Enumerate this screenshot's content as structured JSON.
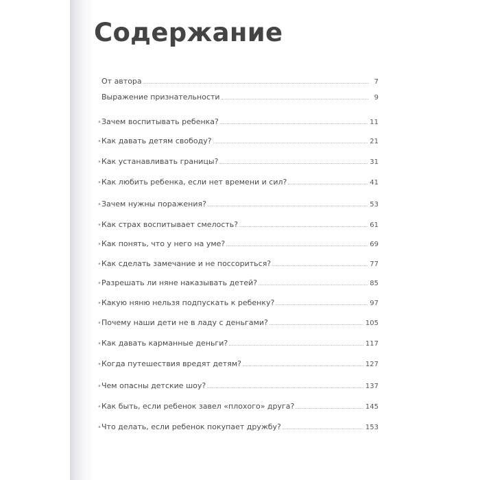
{
  "title": "Содержание",
  "entries": [
    {
      "label": "От автора",
      "page": "7",
      "bullet": false
    },
    {
      "label": "Выражение признательности",
      "page": "9",
      "bullet": false
    },
    {
      "label": "Зачем воспитывать ребенка?",
      "page": "11",
      "bullet": true
    },
    {
      "label": "Как давать детям свободу?",
      "page": "21",
      "bullet": true
    },
    {
      "label": "Как устанавливать границы?",
      "page": "31",
      "bullet": true
    },
    {
      "label": "Как любить ребенка, если нет времени и сил?",
      "page": "41",
      "bullet": true
    },
    {
      "label": "Зачем нужны поражения?",
      "page": "53",
      "bullet": true
    },
    {
      "label": "Как страх воспитывает смелость?",
      "page": "61",
      "bullet": true
    },
    {
      "label": "Как понять, что у него на уме?",
      "page": "69",
      "bullet": true
    },
    {
      "label": "Как сделать замечание и не поссориться?",
      "page": "77",
      "bullet": true
    },
    {
      "label": "Разрешать ли няне наказывать детей?",
      "page": "85",
      "bullet": true
    },
    {
      "label": "Какую няню нельзя подпускать к ребенку?",
      "page": "97",
      "bullet": true
    },
    {
      "label": "Почему наши дети не в ладу с деньгами?",
      "page": "105",
      "bullet": true
    },
    {
      "label": "Как давать карманные деньги?",
      "page": "117",
      "bullet": true
    },
    {
      "label": "Когда путешествия вредят детям?",
      "page": "127",
      "bullet": true
    },
    {
      "label": "Чем опасны детские шоу?",
      "page": "137",
      "bullet": true
    },
    {
      "label": "Как быть, если ребенок завел «плохого» друга?",
      "page": "145",
      "bullet": true
    },
    {
      "label": "Что делать, если ребенок покупает дружбу?",
      "page": "153",
      "bullet": true
    }
  ]
}
